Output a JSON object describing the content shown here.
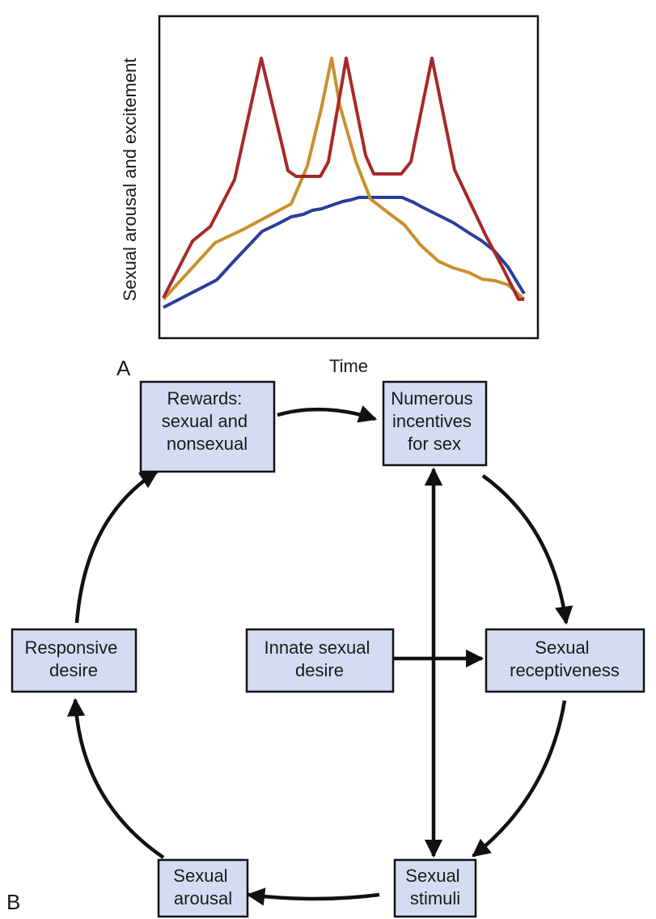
{
  "panel_a": {
    "letter": "A",
    "xlabel": "Time",
    "ylabel": "Sexual arousal and excitement",
    "colors": {
      "red_curve": "#a82828",
      "gold_curve": "#c8902e",
      "blue_curve": "#2a3d9c"
    }
  },
  "panel_b": {
    "letter": "B",
    "box_fill": "#d3dcf2",
    "nodes": {
      "rewards": [
        "Rewards:",
        "sexual and",
        "nonsexual"
      ],
      "incentives": [
        "Numerous",
        "incentives",
        "for sex"
      ],
      "receptiveness": [
        "Sexual",
        "receptiveness"
      ],
      "stimuli": [
        "Sexual",
        "stimuli"
      ],
      "arousal": [
        "Sexual",
        "arousal"
      ],
      "responsive": [
        "Responsive",
        "desire"
      ],
      "innate": [
        "Innate sexual",
        "desire"
      ]
    }
  }
}
